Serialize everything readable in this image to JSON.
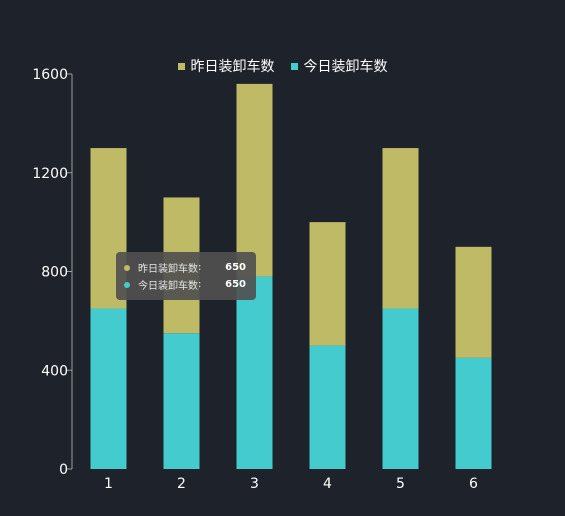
{
  "chart_data": {
    "type": "bar",
    "stacked": true,
    "categories": [
      "1",
      "2",
      "3",
      "4",
      "5",
      "6"
    ],
    "series": [
      {
        "name": "今日装卸车数",
        "color": "#44cbcd",
        "values": [
          650,
          550,
          780,
          500,
          650,
          450
        ]
      },
      {
        "name": "昨日装卸车数",
        "color": "#bfba66",
        "values": [
          650,
          550,
          780,
          500,
          650,
          450
        ]
      }
    ],
    "ylim": [
      0,
      1600
    ],
    "yticks": [
      0,
      400,
      800,
      1200,
      1600
    ],
    "grid": false,
    "legend_position": "top-center",
    "title": "",
    "xlabel": "",
    "ylabel": ""
  },
  "legend": {
    "items": [
      {
        "label": "昨日装卸车数",
        "color": "#bfba66"
      },
      {
        "label": "今日装卸车数",
        "color": "#44cbcd"
      }
    ]
  },
  "tooltip": {
    "rows": [
      {
        "label": "昨日装卸车数",
        "value": "650",
        "color": "#bfba66"
      },
      {
        "label": "今日装卸车数",
        "value": "650",
        "color": "#44cbcd"
      }
    ],
    "colon": ":"
  }
}
